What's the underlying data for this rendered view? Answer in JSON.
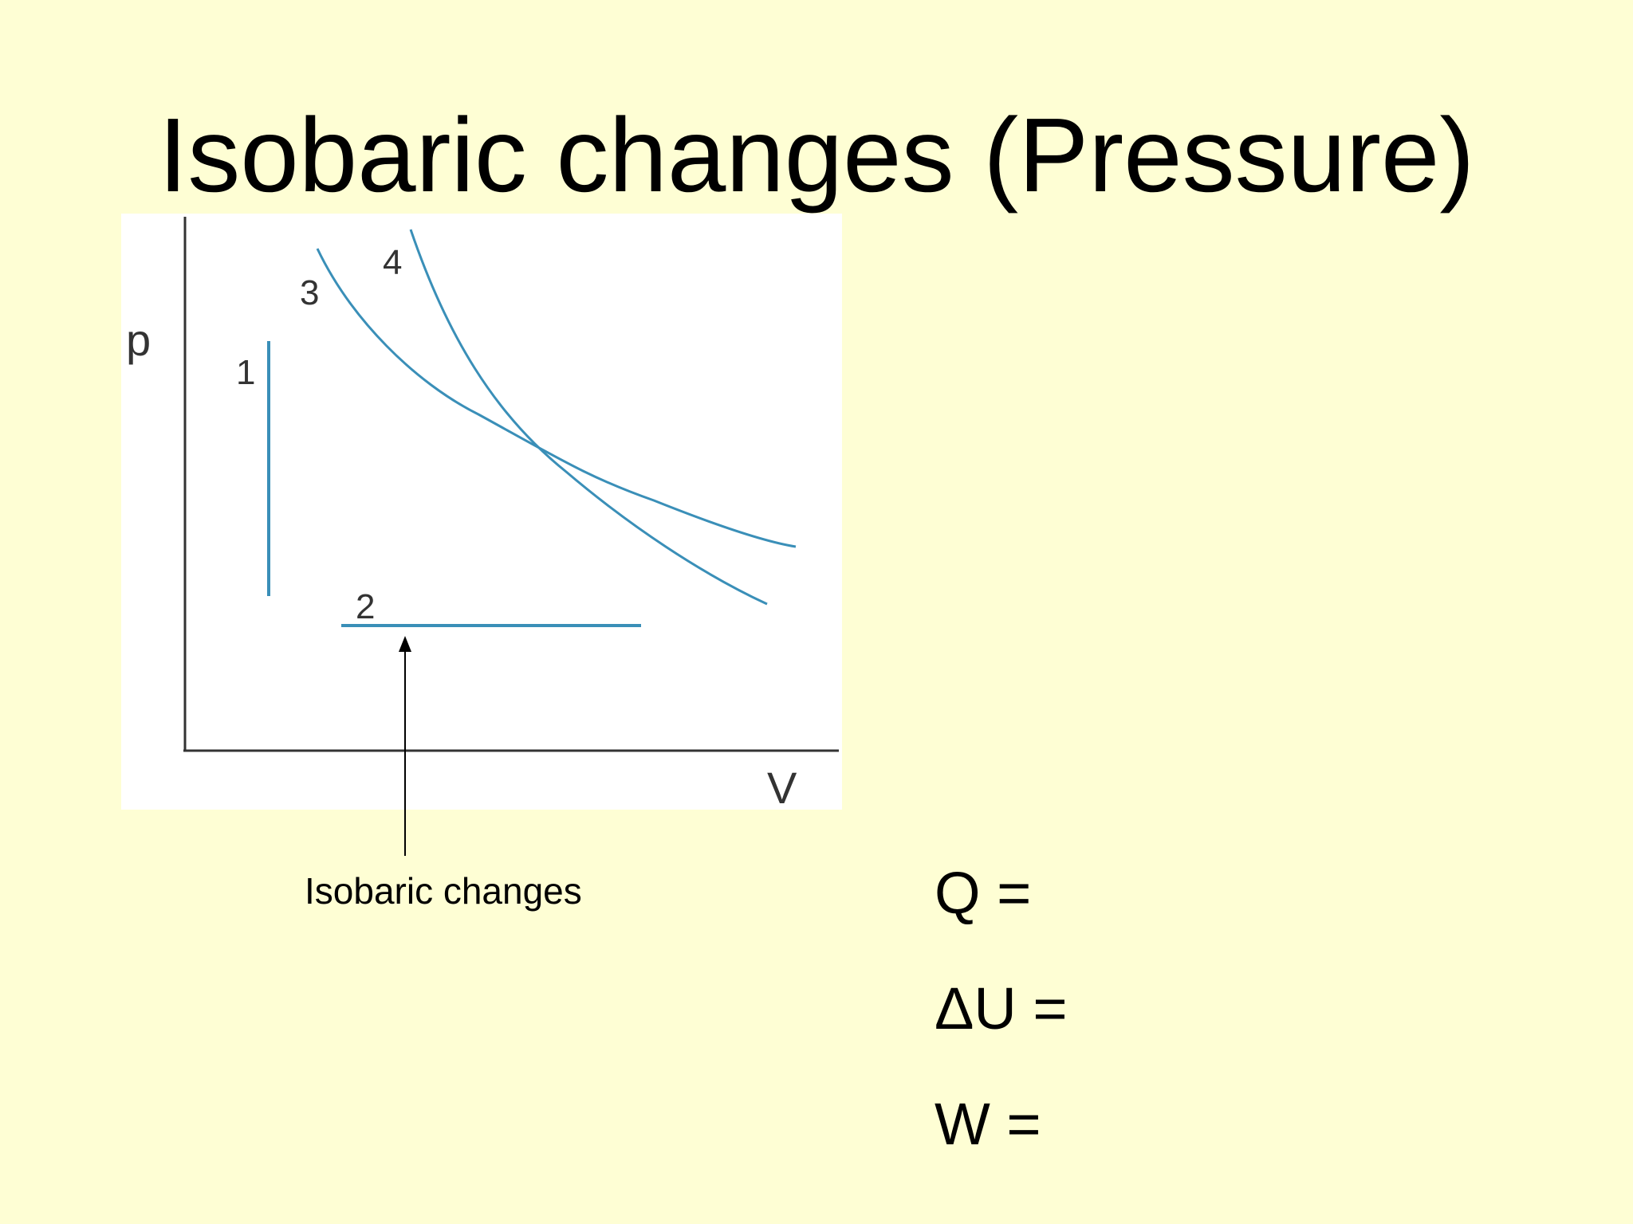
{
  "slide": {
    "title": "Isobaric changes (Pressure)",
    "background_color": "#fefed4"
  },
  "diagram": {
    "y_axis_label": "p",
    "x_axis_label": "V",
    "curve_color": "#3a8fb8",
    "process_labels": [
      "1",
      "2",
      "3",
      "4"
    ],
    "callout_label": "Isobaric changes"
  },
  "equations": [
    "Q =",
    "ΔU =",
    "W ="
  ]
}
